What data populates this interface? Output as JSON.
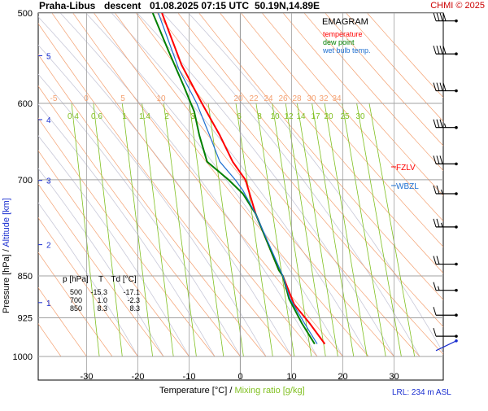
{
  "header": {
    "station": "Praha-Libus",
    "mode": "descent",
    "datetime": "01.08.2025 07:15 UTC",
    "position": "50.19N,14.89E",
    "copyright": "CHMI © 2025"
  },
  "legend": {
    "title": "EMAGRAM",
    "items": [
      {
        "label": "temperature",
        "color": "#ff0000"
      },
      {
        "label": "dew point",
        "color": "#008000"
      },
      {
        "label": "wet bulb temp.",
        "color": "#1e6fd0"
      }
    ]
  },
  "axes": {
    "xlabel": "Temperature [°C]",
    "xlabel_sep": "/",
    "xlabel2": "Mixing ratio [g/kg]",
    "ylabel": "Pressure [hPa]",
    "ylabel_sep": "/",
    "ylabel2": "Altitude [km]",
    "lrl": "LRL: 234 m ASL"
  },
  "table": {
    "headers": [
      "p [hPa]",
      "T",
      "Td [°C]"
    ],
    "rows": [
      [
        "500",
        "-15.3",
        "-17.1"
      ],
      [
        "700",
        "1.0",
        "-2.3"
      ],
      [
        "850",
        "8.3",
        "8.3"
      ]
    ]
  },
  "levels": {
    "fzlv": "FZLV",
    "wbzl": "WBZL"
  },
  "colors": {
    "temperature": "#ff0000",
    "dewpoint": "#008000",
    "wetbulb": "#1e6fd0",
    "isotherm": "#a0a0a0",
    "dry_adiabat": "#f4a070",
    "moist_adiabat": "#c8c8d8",
    "mixing_ratio": "#80c020",
    "isobar": "#a0a0a0",
    "wind": "#000000",
    "lowest_wind": "#1a2ed0"
  },
  "chart_data": {
    "type": "line",
    "title": "Praha-Libus descent 01.08.2025 07:15 UTC 50.19N,14.89E",
    "xlim": [
      -40,
      35
    ],
    "ylim": [
      1000,
      500
    ],
    "yscale": "log",
    "x_ticks": [
      -30,
      -20,
      -10,
      0,
      10,
      20,
      30
    ],
    "pressure_ticks": [
      500,
      600,
      700,
      850,
      925,
      1000
    ],
    "altitude_ticks": [
      {
        "km": 5,
        "p": 545
      },
      {
        "km": 4,
        "p": 620
      },
      {
        "km": 3,
        "p": 701
      },
      {
        "km": 2,
        "p": 798
      },
      {
        "km": 1,
        "p": 897
      }
    ],
    "dry_adiabat_labels": [
      -5,
      0,
      5,
      10,
      20,
      22,
      24,
      26,
      28,
      30,
      32,
      34
    ],
    "mixing_ratio_labels": [
      "0.4",
      "0.6",
      "1",
      "1.4",
      "2",
      "3",
      "6",
      "8",
      "10",
      "12",
      "14",
      "17",
      "20",
      "25",
      "30"
    ],
    "series": [
      {
        "name": "temperature",
        "points": [
          [
            16.5,
            975
          ],
          [
            13.5,
            935
          ],
          [
            10.5,
            900
          ],
          [
            8.3,
            850
          ],
          [
            7.5,
            840
          ],
          [
            3.0,
            750
          ],
          [
            1.0,
            700
          ],
          [
            0.0,
            690
          ],
          [
            -1.5,
            675
          ],
          [
            -4.0,
            640
          ],
          [
            -7.5,
            600
          ],
          [
            -11.5,
            555
          ],
          [
            -15.3,
            500
          ]
        ]
      },
      {
        "name": "dew point",
        "points": [
          [
            14.5,
            975
          ],
          [
            12.0,
            935
          ],
          [
            9.5,
            890
          ],
          [
            8.3,
            850
          ],
          [
            7.5,
            840
          ],
          [
            3.0,
            750
          ],
          [
            0.5,
            720
          ],
          [
            -2.3,
            700
          ],
          [
            -6.5,
            675
          ],
          [
            -8.0,
            640
          ],
          [
            -9.0,
            610
          ],
          [
            -11.0,
            580
          ],
          [
            -14.0,
            540
          ],
          [
            -17.1,
            500
          ]
        ]
      },
      {
        "name": "wet bulb temp.",
        "points": [
          [
            15.0,
            975
          ],
          [
            12.5,
            935
          ],
          [
            9.7,
            890
          ],
          [
            8.3,
            850
          ],
          [
            3.0,
            750
          ],
          [
            0.5,
            715
          ],
          [
            -1.0,
            700
          ],
          [
            -4.0,
            675
          ],
          [
            -6.0,
            640
          ],
          [
            -8.5,
            600
          ],
          [
            -12.0,
            560
          ],
          [
            -16.0,
            500
          ]
        ]
      }
    ],
    "wind_barbs": [
      {
        "p": 508,
        "knots": 40
      },
      {
        "p": 543,
        "knots": 40
      },
      {
        "p": 585,
        "knots": 40
      },
      {
        "p": 630,
        "knots": 35
      },
      {
        "p": 678,
        "knots": 30
      },
      {
        "p": 720,
        "knots": 25
      },
      {
        "p": 770,
        "knots": 25
      },
      {
        "p": 830,
        "knots": 20
      },
      {
        "p": 875,
        "knots": 15
      },
      {
        "p": 920,
        "knots": 10
      },
      {
        "p": 960,
        "knots": 10
      },
      {
        "p": 985,
        "knots": 5
      }
    ]
  }
}
